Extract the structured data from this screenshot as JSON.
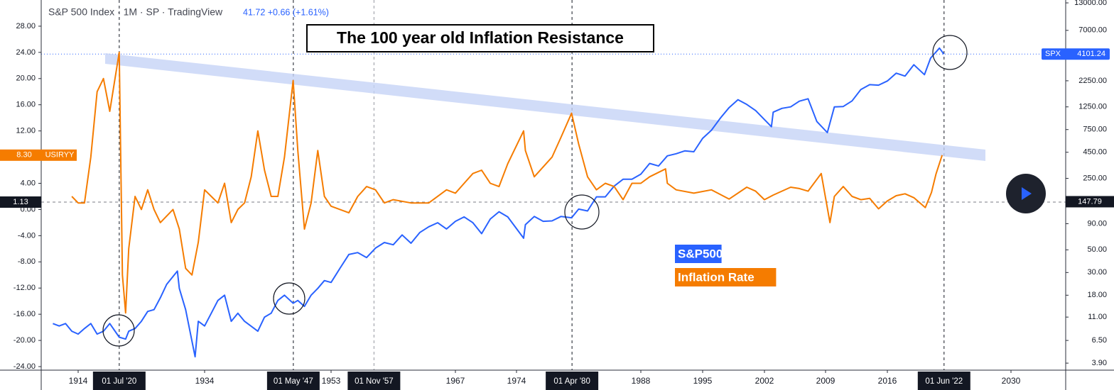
{
  "chart_data": {
    "type": "line",
    "title": "The 100 year old Inflation Resistance",
    "legend_text": "S&P 500 Index · 1M · SP · TradingView",
    "legend_quote": "41.72  +0.66 (+1.61%)",
    "xlim": [
      1909.4,
      2036.8
    ],
    "xticks": [
      1914,
      1934,
      1953,
      1967,
      1974,
      1988,
      1995,
      2002,
      2009,
      2016,
      2030
    ],
    "ylim": [
      -24.54,
      32.0
    ],
    "yticks": [
      {
        "value": 28,
        "label": "28.00"
      },
      {
        "value": 24,
        "label": "24.00"
      },
      {
        "value": 20,
        "label": "20.00"
      },
      {
        "value": 16,
        "label": "16.00"
      },
      {
        "value": 12,
        "label": "12.00"
      },
      {
        "value": 4,
        "label": "4.00"
      },
      {
        "value": 0,
        "label": "0.00"
      },
      {
        "value": -4,
        "label": "-4.00"
      },
      {
        "value": -8,
        "label": "-8.00"
      },
      {
        "value": -12,
        "label": "-12.00"
      },
      {
        "value": -16,
        "label": "-16.00"
      },
      {
        "value": -20,
        "label": "-20.00"
      },
      {
        "value": -24,
        "label": "-24.00"
      }
    ],
    "y2scale": "log",
    "y2lim": [
      3.33,
      13870
    ],
    "y2ticks": [
      {
        "value": 13000,
        "label": "13000.00"
      },
      {
        "value": 7000,
        "label": "7000.00"
      },
      {
        "value": 2250,
        "label": "2250.00"
      },
      {
        "value": 1250,
        "label": "1250.00"
      },
      {
        "value": 750,
        "label": "750.00"
      },
      {
        "value": 450,
        "label": "450.00"
      },
      {
        "value": 250,
        "label": "250.00"
      },
      {
        "value": 90,
        "label": "90.00"
      },
      {
        "value": 50,
        "label": "50.00"
      },
      {
        "value": 30,
        "label": "30.00"
      },
      {
        "value": 18,
        "label": "18.00"
      },
      {
        "value": 11,
        "label": "11.00"
      },
      {
        "value": 6.5,
        "label": "6.50"
      },
      {
        "value": 3.9,
        "label": "3.90"
      }
    ],
    "crosshair": {
      "y": 1.13,
      "y2": 147.79
    },
    "markers": [
      {
        "x": 1920.5,
        "label": "01 Jul '20"
      },
      {
        "x": 1947.33,
        "label": "01 May '47"
      },
      {
        "x": 1957.83,
        "label": "01 Nov '57"
      },
      {
        "x": 1980.25,
        "label": "01 Apr '80"
      },
      {
        "x": 2022.42,
        "label": "01 Jun '22"
      }
    ],
    "series": [
      {
        "name": "S&P500",
        "tag": "SPX",
        "color": "#2962ff",
        "axis": "y2",
        "x": [
          1910,
          1911,
          1912,
          1913,
          1914,
          1915,
          1916,
          1917,
          1918,
          1919,
          1920.5,
          1921.5,
          1922,
          1923,
          1924,
          1925,
          1926,
          1927,
          1928,
          1929.7,
          1930,
          1931,
          1932.5,
          1933,
          1934,
          1935,
          1936,
          1937,
          1938,
          1939,
          1940,
          1942,
          1943,
          1944,
          1945,
          1946,
          1947.3,
          1948,
          1949,
          1950,
          1951,
          1952,
          1953,
          1954,
          1955,
          1956,
          1957,
          1958,
          1959,
          1960,
          1961,
          1962,
          1963,
          1964,
          1965,
          1966,
          1967,
          1968,
          1969,
          1970,
          1971,
          1972,
          1973,
          1974.8,
          1975,
          1976,
          1977,
          1978,
          1979,
          1980.2,
          1981,
          1982,
          1983,
          1984,
          1985,
          1986,
          1987,
          1988,
          1989,
          1990,
          1991,
          1992,
          1993,
          1994,
          1995,
          1996,
          1997,
          1998,
          1999,
          2000,
          2001,
          2002.8,
          2003,
          2004,
          2005,
          2006,
          2007,
          2008,
          2009.2,
          2010,
          2011,
          2012,
          2013,
          2014,
          2015,
          2016,
          2017,
          2018,
          2019,
          2020.2,
          2020.9,
          2021.9,
          2022.4
        ],
        "values": [
          9.5,
          9,
          9.5,
          8,
          7.5,
          8.5,
          9.5,
          7.5,
          8,
          9.5,
          7,
          6.7,
          8,
          8.5,
          10,
          12.5,
          13,
          17,
          23,
          31,
          21,
          13,
          4.5,
          10,
          9,
          12,
          16,
          18,
          10,
          12,
          10,
          8,
          11,
          12,
          16,
          18,
          15,
          16,
          14,
          18,
          21,
          25,
          24,
          33,
          45,
          47,
          42,
          52,
          59,
          56,
          70,
          58,
          74,
          84,
          92,
          80,
          95,
          105,
          92,
          72,
          100,
          118,
          105,
          65,
          88,
          106,
          95,
          96,
          106,
          103,
          125,
          120,
          165,
          165,
          210,
          245,
          245,
          275,
          350,
          330,
          415,
          435,
          465,
          455,
          615,
          740,
          970,
          1230,
          1470,
          1320,
          1150,
          800,
          1110,
          1210,
          1250,
          1420,
          1500,
          900,
          700,
          1250,
          1260,
          1430,
          1850,
          2060,
          2040,
          2240,
          2670,
          2500,
          3230,
          2580,
          3750,
          4700,
          4101.24
        ]
      },
      {
        "name": "Inflation Rate",
        "tag": "USIRYY",
        "last_label": "8.30",
        "color": "#f57c00",
        "axis": "y",
        "x": [
          1913,
          1914,
          1915,
          1916,
          1917,
          1918,
          1919,
          1920.5,
          1921,
          1921.5,
          1922,
          1923,
          1924,
          1925,
          1926,
          1927,
          1928,
          1929,
          1930,
          1931,
          1932,
          1933,
          1934,
          1935,
          1936,
          1937,
          1938,
          1939,
          1940,
          1941,
          1942,
          1943,
          1944,
          1945,
          1946,
          1947.3,
          1948,
          1949,
          1950,
          1951,
          1952,
          1953,
          1954,
          1955,
          1956,
          1957,
          1958,
          1959,
          1960,
          1962,
          1964,
          1966,
          1967,
          1968,
          1969,
          1970,
          1971,
          1972,
          1973,
          1974.8,
          1975,
          1976,
          1977,
          1978,
          1979,
          1980.2,
          1981,
          1982,
          1983,
          1984,
          1985,
          1986,
          1987,
          1988,
          1989,
          1990.8,
          1991,
          1992,
          1994,
          1996,
          1998,
          2000,
          2001,
          2002,
          2003,
          2005,
          2006,
          2007,
          2008.5,
          2009.5,
          2010,
          2011,
          2012,
          2013,
          2014,
          2015,
          2016,
          2017,
          2018,
          2019,
          2020.3,
          2021,
          2021.5,
          2022.2
        ],
        "values": [
          2,
          1,
          1,
          8,
          18,
          20,
          15,
          24,
          -10,
          -15.8,
          -6,
          2,
          0,
          3,
          0,
          -2,
          -1,
          0,
          -3,
          -9,
          -10,
          -5,
          3,
          2,
          1,
          4,
          -2,
          0,
          1,
          5,
          12,
          6,
          2,
          2,
          8,
          19.7,
          9,
          -3,
          1,
          9,
          2,
          0.5,
          0,
          -0.5,
          2,
          3.5,
          3,
          1,
          1.5,
          1,
          1,
          3,
          2.5,
          4,
          5.5,
          6,
          4,
          3.5,
          7,
          12,
          9,
          5,
          6.5,
          8,
          11,
          14.7,
          10,
          5,
          3,
          4,
          3.5,
          1.5,
          4,
          4,
          5,
          6.2,
          4,
          3,
          2.5,
          3,
          1.6,
          3.4,
          2.8,
          1.5,
          2.2,
          3.4,
          3.2,
          2.8,
          5.5,
          -2,
          2,
          3.5,
          2,
          1.5,
          1.7,
          0.1,
          1.3,
          2.1,
          2.4,
          1.8,
          0.3,
          2.6,
          5.4,
          8.3
        ]
      }
    ]
  }
}
